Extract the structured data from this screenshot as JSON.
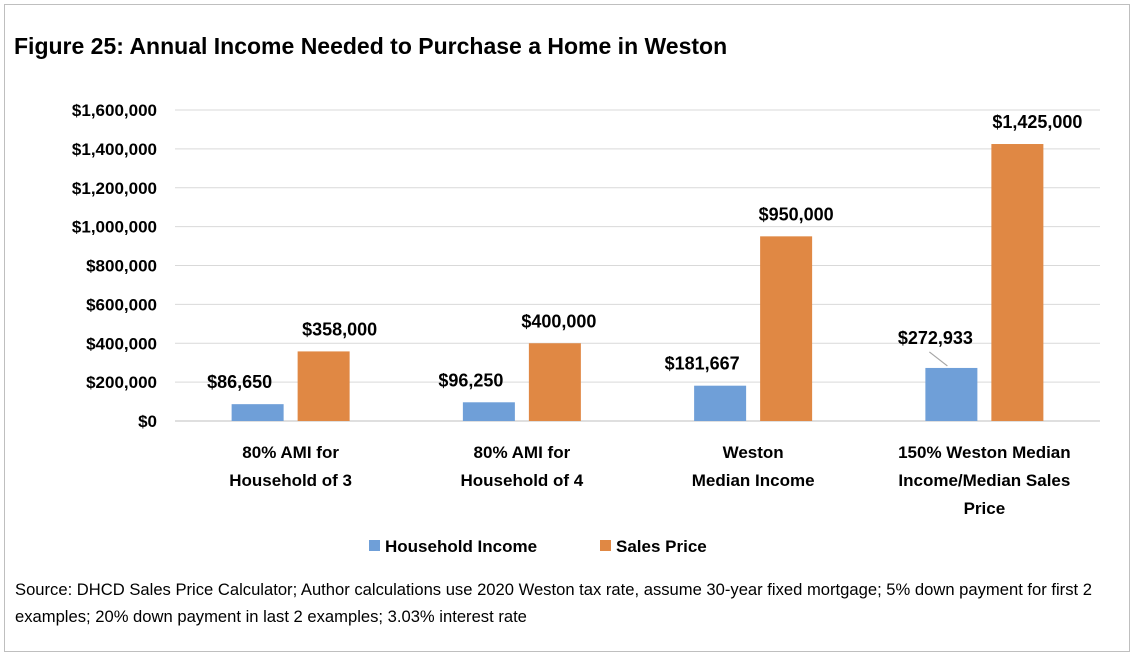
{
  "title": "Figure 25: Annual Income Needed to Purchase a Home in Weston",
  "source_note": "Source: DHCD Sales Price Calculator; Author calculations use 2020 Weston tax rate, assume 30-year fixed mortgage; 5% down payment for first 2 examples; 20% down payment in last 2 examples; 3.03% interest rate",
  "chart_data": {
    "type": "bar",
    "categories": [
      [
        "80% AMI for",
        "Household of 3"
      ],
      [
        "80% AMI for",
        "Household of 4"
      ],
      [
        "Weston",
        "Median Income"
      ],
      [
        "150% Weston Median",
        "Income/Median Sales",
        "Price"
      ]
    ],
    "series": [
      {
        "name": "Household Income",
        "color": "#6f9fd8",
        "values": [
          86650,
          96250,
          181667,
          272933
        ],
        "labels": [
          "$86,650",
          "$96,250",
          "$181,667",
          "$272,933"
        ]
      },
      {
        "name": "Sales Price",
        "color": "#e08844",
        "values": [
          358000,
          400000,
          950000,
          1425000
        ],
        "labels": [
          "$358,000",
          "$400,000",
          "$950,000",
          "$1,425,000"
        ]
      }
    ],
    "ylim": [
      0,
      1600000
    ],
    "yticks": [
      0,
      200000,
      400000,
      600000,
      800000,
      1000000,
      1200000,
      1400000,
      1600000
    ],
    "ytick_labels": [
      "$0",
      "$200,000",
      "$400,000",
      "$600,000",
      "$800,000",
      "$1,000,000",
      "$1,200,000",
      "$1,400,000",
      "$1,600,000"
    ],
    "grid": true,
    "legend_position": "bottom"
  }
}
